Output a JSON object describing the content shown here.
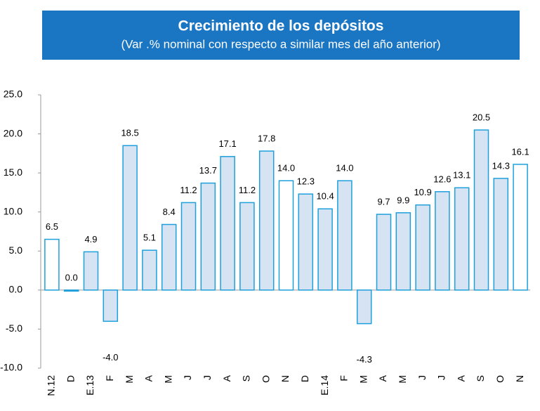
{
  "chart_data": {
    "type": "bar",
    "title": "Crecimiento de los depósitos",
    "subtitle": "(Var .% nominal con respecto a similar mes del año anterior)",
    "categories": [
      "N.12",
      "D",
      "E.13",
      "F",
      "M",
      "A",
      "M",
      "J",
      "J",
      "A",
      "S",
      "O",
      "N",
      "D",
      "E.14",
      "F",
      "M",
      "A",
      "M",
      "J",
      "J",
      "A",
      "S",
      "O",
      "N"
    ],
    "values": [
      6.5,
      0.0,
      4.9,
      -4.0,
      18.5,
      5.1,
      8.4,
      11.2,
      13.7,
      17.1,
      11.2,
      17.8,
      14.0,
      12.3,
      10.4,
      14.0,
      -4.3,
      9.7,
      9.9,
      10.9,
      12.6,
      13.1,
      20.5,
      14.3,
      16.1
    ],
    "value_labels": [
      "6.5",
      "0.0",
      "4.9",
      "-4.0",
      "18.5",
      "5.1",
      "8.4",
      "11.2",
      "13.7",
      "17.1",
      "11.2",
      "17.8",
      "14.0",
      "12.3",
      "10.4",
      "14.0",
      "-4.3",
      "9.7",
      "9.9",
      "10.9",
      "12.6",
      "13.1",
      "20.5",
      "14.3",
      "16.1"
    ],
    "colors": [
      "#ffffff",
      "#d6e3f3",
      "#d6e3f3",
      "#d6e3f3",
      "#d6e3f3",
      "#d6e3f3",
      "#d6e3f3",
      "#d6e3f3",
      "#d6e3f3",
      "#d6e3f3",
      "#d6e3f3",
      "#d6e3f3",
      "#ffffff",
      "#d6e3f3",
      "#d6e3f3",
      "#d6e3f3",
      "#d6e3f3",
      "#d6e3f3",
      "#d6e3f3",
      "#d6e3f3",
      "#d6e3f3",
      "#d6e3f3",
      "#d6e3f3",
      "#d6e3f3",
      "#ffffff"
    ],
    "edge_color": "#1ea0dc",
    "ylim": [
      -10,
      25
    ],
    "yticks": [
      {
        "value": -10,
        "label": "-10.0"
      },
      {
        "value": -5,
        "label": "-5.0"
      },
      {
        "value": 0,
        "label": "0.0"
      },
      {
        "value": 5,
        "label": "5.0"
      },
      {
        "value": 10,
        "label": "10.0"
      },
      {
        "value": 15,
        "label": "15.0"
      },
      {
        "value": 20,
        "label": "20.0"
      },
      {
        "value": 25,
        "label": "25.0"
      }
    ],
    "grid": false
  }
}
